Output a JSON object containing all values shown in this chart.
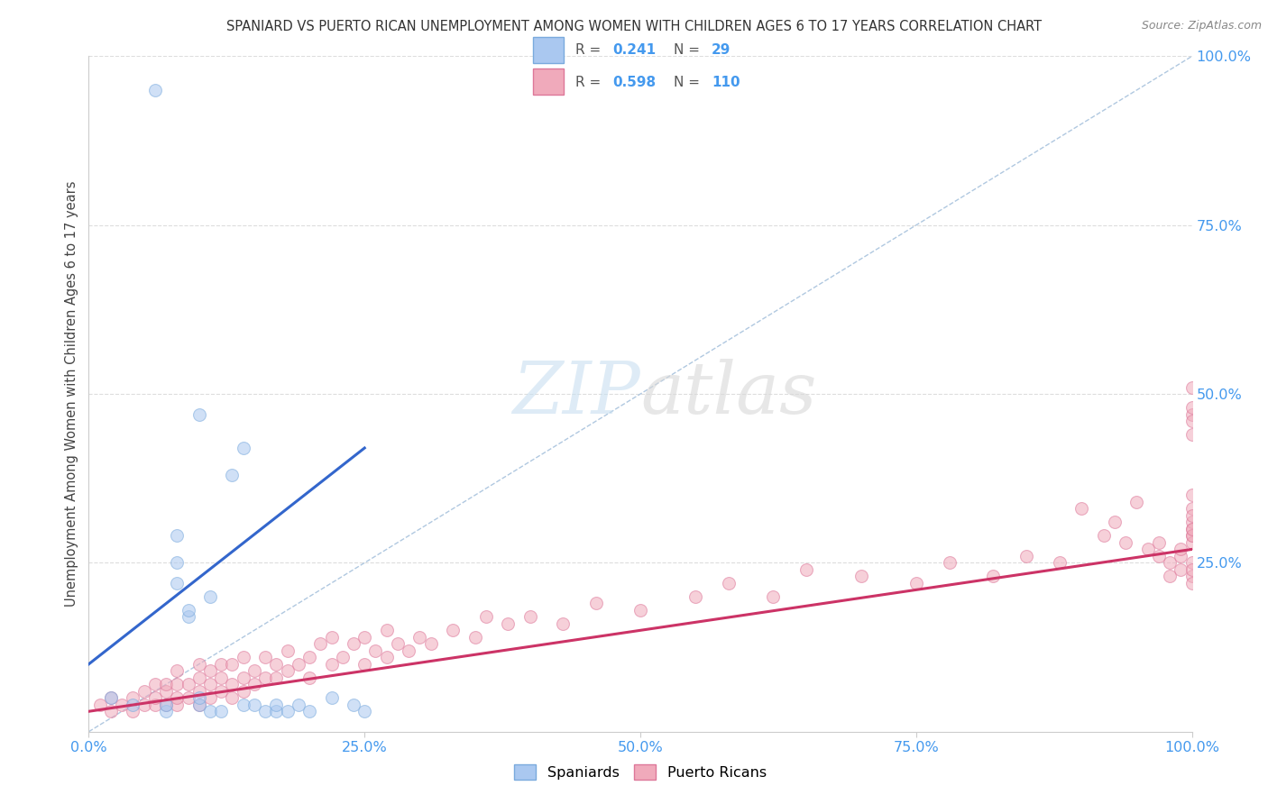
{
  "title": "SPANIARD VS PUERTO RICAN UNEMPLOYMENT AMONG WOMEN WITH CHILDREN AGES 6 TO 17 YEARS CORRELATION CHART",
  "source": "Source: ZipAtlas.com",
  "ylabel": "Unemployment Among Women with Children Ages 6 to 17 years",
  "watermark_zip": "ZIP",
  "watermark_atlas": "atlas",
  "legend_r1": "R = 0.241",
  "legend_n1": "N =  29",
  "legend_r2": "R = 0.598",
  "legend_n2": "N = 110",
  "spaniard_color": "#aac8f0",
  "spaniard_edge": "#7aaadd",
  "spaniard_line_color": "#3366cc",
  "puerto_rican_color": "#f0aabb",
  "puerto_rican_edge": "#dd7799",
  "puerto_rican_line_color": "#cc3366",
  "dashed_line_color": "#b0c8e0",
  "background_color": "#ffffff",
  "grid_color": "#dddddd",
  "title_color": "#333333",
  "tick_color": "#4499ee",
  "ylabel_color": "#444444",
  "source_color": "#888888",
  "spaniard_x": [
    0.02,
    0.04,
    0.06,
    0.07,
    0.07,
    0.08,
    0.08,
    0.08,
    0.09,
    0.09,
    0.1,
    0.1,
    0.1,
    0.11,
    0.11,
    0.12,
    0.13,
    0.14,
    0.14,
    0.15,
    0.16,
    0.17,
    0.17,
    0.18,
    0.19,
    0.2,
    0.22,
    0.24,
    0.25
  ],
  "spaniard_y": [
    0.05,
    0.04,
    0.95,
    0.03,
    0.04,
    0.22,
    0.25,
    0.29,
    0.17,
    0.18,
    0.04,
    0.05,
    0.47,
    0.03,
    0.2,
    0.03,
    0.38,
    0.04,
    0.42,
    0.04,
    0.03,
    0.03,
    0.04,
    0.03,
    0.04,
    0.03,
    0.05,
    0.04,
    0.03
  ],
  "spaniard_line_x0": 0.0,
  "spaniard_line_x1": 0.25,
  "spaniard_line_y0": 0.1,
  "spaniard_line_y1": 0.42,
  "puerto_rican_line_x0": 0.0,
  "puerto_rican_line_x1": 1.0,
  "puerto_rican_line_y0": 0.03,
  "puerto_rican_line_y1": 0.27,
  "puerto_rican_x": [
    0.01,
    0.02,
    0.02,
    0.03,
    0.04,
    0.04,
    0.05,
    0.05,
    0.06,
    0.06,
    0.06,
    0.07,
    0.07,
    0.07,
    0.08,
    0.08,
    0.08,
    0.08,
    0.09,
    0.09,
    0.1,
    0.1,
    0.1,
    0.1,
    0.11,
    0.11,
    0.11,
    0.12,
    0.12,
    0.12,
    0.13,
    0.13,
    0.13,
    0.14,
    0.14,
    0.14,
    0.15,
    0.15,
    0.16,
    0.16,
    0.17,
    0.17,
    0.18,
    0.18,
    0.19,
    0.2,
    0.2,
    0.21,
    0.22,
    0.22,
    0.23,
    0.24,
    0.25,
    0.25,
    0.26,
    0.27,
    0.27,
    0.28,
    0.29,
    0.3,
    0.31,
    0.33,
    0.35,
    0.36,
    0.38,
    0.4,
    0.43,
    0.46,
    0.5,
    0.55,
    0.58,
    0.62,
    0.65,
    0.7,
    0.75,
    0.78,
    0.82,
    0.85,
    0.88,
    0.9,
    0.92,
    0.93,
    0.94,
    0.95,
    0.96,
    0.97,
    0.97,
    0.98,
    0.98,
    0.99,
    0.99,
    0.99,
    1.0,
    1.0,
    1.0,
    1.0,
    1.0,
    1.0,
    1.0,
    1.0,
    1.0,
    1.0,
    1.0,
    1.0,
    1.0,
    1.0,
    1.0,
    1.0,
    1.0,
    1.0
  ],
  "puerto_rican_y": [
    0.04,
    0.03,
    0.05,
    0.04,
    0.03,
    0.05,
    0.04,
    0.06,
    0.04,
    0.05,
    0.07,
    0.04,
    0.06,
    0.07,
    0.04,
    0.05,
    0.07,
    0.09,
    0.05,
    0.07,
    0.04,
    0.06,
    0.08,
    0.1,
    0.05,
    0.07,
    0.09,
    0.06,
    0.08,
    0.1,
    0.05,
    0.07,
    0.1,
    0.06,
    0.08,
    0.11,
    0.07,
    0.09,
    0.08,
    0.11,
    0.08,
    0.1,
    0.09,
    0.12,
    0.1,
    0.08,
    0.11,
    0.13,
    0.1,
    0.14,
    0.11,
    0.13,
    0.1,
    0.14,
    0.12,
    0.11,
    0.15,
    0.13,
    0.12,
    0.14,
    0.13,
    0.15,
    0.14,
    0.17,
    0.16,
    0.17,
    0.16,
    0.19,
    0.18,
    0.2,
    0.22,
    0.2,
    0.24,
    0.23,
    0.22,
    0.25,
    0.23,
    0.26,
    0.25,
    0.33,
    0.29,
    0.31,
    0.28,
    0.34,
    0.27,
    0.26,
    0.28,
    0.23,
    0.25,
    0.24,
    0.26,
    0.27,
    0.23,
    0.22,
    0.25,
    0.3,
    0.24,
    0.29,
    0.31,
    0.28,
    0.44,
    0.47,
    0.33,
    0.29,
    0.3,
    0.35,
    0.32,
    0.48,
    0.51,
    0.46
  ],
  "xlim": [
    0.0,
    1.0
  ],
  "ylim": [
    0.0,
    1.0
  ],
  "title_fontsize": 10.5,
  "source_fontsize": 9,
  "marker_size": 100,
  "marker_alpha": 0.55,
  "marker_lw": 0.8,
  "ytick_vals": [
    0.25,
    0.5,
    0.75,
    1.0
  ],
  "ytick_labels": [
    "25.0%",
    "50.0%",
    "75.0%",
    "100.0%"
  ],
  "xtick_vals": [
    0.0,
    0.25,
    0.5,
    0.75,
    1.0
  ],
  "xtick_labels": [
    "0.0%",
    "25.0%",
    "50.0%",
    "75.0%",
    "100.0%"
  ]
}
